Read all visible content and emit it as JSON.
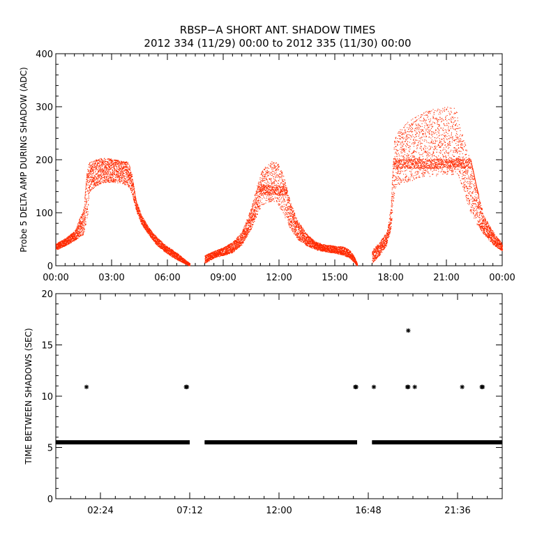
{
  "figure": {
    "title_line1": "RBSP−A SHORT ANT. SHADOW TIMES",
    "title_line2": "2012 334 (11/29) 00:00 to 2012 335 (11/30) 00:00"
  },
  "colors": {
    "top_points": "#ff2a00",
    "bottom_points": "#000000",
    "axes": "#000000",
    "background": "#ffffff"
  },
  "chart_data": [
    {
      "type": "scatter",
      "title": "",
      "xlabel": "",
      "ylabel": "Probe 5 DELTA AMP DURING SHADOW (ADC)",
      "x_unit": "hours",
      "xlim": [
        0,
        24
      ],
      "ylim": [
        0,
        400
      ],
      "x_ticks": [
        0,
        3,
        6,
        9,
        12,
        15,
        18,
        21,
        24
      ],
      "x_tick_labels": [
        "00:00",
        "03:00",
        "06:00",
        "09:00",
        "12:00",
        "15:00",
        "18:00",
        "21:00",
        "00:00"
      ],
      "y_ticks": [
        0,
        100,
        200,
        300,
        400
      ],
      "y_tick_labels": [
        "0",
        "100",
        "200",
        "300",
        "400"
      ],
      "grid": false,
      "marker": "dot",
      "color": "#ff2a00",
      "series": [
        {
          "segments": [
            {
              "x": [
                0.0,
                0.5,
                1.0,
                1.5,
                1.7,
                1.8,
                2.1,
                2.4,
                2.7,
                3.0,
                3.3,
                3.6,
                3.9,
                4.1,
                4.3,
                4.6,
                5.0,
                5.4,
                5.8,
                6.2,
                6.6,
                7.0,
                7.2
              ],
              "y_low": [
                30,
                38,
                48,
                60,
                95,
                140,
                150,
                155,
                158,
                158,
                157,
                155,
                150,
                135,
                105,
                78,
                58,
                40,
                28,
                18,
                10,
                3,
                0
              ],
              "y_high": [
                42,
                52,
                66,
                110,
                190,
                195,
                200,
                204,
                203,
                202,
                200,
                198,
                196,
                170,
                125,
                95,
                72,
                55,
                42,
                32,
                22,
                10,
                5
              ],
              "band_center": 175
            },
            {
              "x": [
                8.0,
                8.5,
                9.0,
                9.5,
                10.0,
                10.5,
                10.8,
                11.0,
                11.3,
                11.6,
                11.9,
                12.2,
                12.6,
                13.0,
                13.5,
                14.0,
                14.5,
                15.0,
                15.5,
                15.8,
                16.0,
                16.2
              ],
              "y_low": [
                5,
                15,
                20,
                25,
                40,
                70,
                95,
                110,
                120,
                122,
                118,
                100,
                70,
                50,
                38,
                30,
                27,
                24,
                20,
                14,
                8,
                0
              ],
              "y_high": [
                20,
                28,
                35,
                45,
                65,
                110,
                150,
                175,
                190,
                197,
                195,
                175,
                120,
                85,
                60,
                45,
                40,
                38,
                36,
                30,
                20,
                5
              ],
              "band_center": 143
            },
            {
              "x": [
                17.0,
                17.4,
                17.8,
                18.0,
                18.2,
                18.5,
                19.0,
                19.5,
                20.0,
                20.5,
                21.0,
                21.5,
                21.7,
                22.0,
                22.3,
                22.6,
                23.0,
                23.5,
                24.0
              ],
              "y_low": [
                5,
                20,
                40,
                70,
                140,
                155,
                160,
                165,
                168,
                170,
                172,
                172,
                165,
                130,
                100,
                80,
                60,
                40,
                28
              ],
              "y_high": [
                30,
                45,
                65,
                110,
                240,
                260,
                275,
                285,
                293,
                298,
                300,
                298,
                265,
                230,
                200,
                150,
                95,
                65,
                42
              ],
              "band_center": 193
            }
          ]
        }
      ]
    },
    {
      "type": "scatter",
      "title": "",
      "xlabel": "",
      "ylabel": "TIME BETWEEN SHADOWS (SEC)",
      "x_unit": "hours",
      "xlim": [
        0,
        24
      ],
      "ylim": [
        0,
        20
      ],
      "x_ticks": [
        2.4,
        7.2,
        12.0,
        16.8,
        21.6
      ],
      "x_tick_labels": [
        "02:24",
        "07:12",
        "12:00",
        "16:48",
        "21:36"
      ],
      "y_ticks": [
        0,
        5,
        10,
        15,
        20
      ],
      "y_tick_labels": [
        "0",
        "5",
        "10",
        "15",
        "20"
      ],
      "grid": false,
      "marker": "asterisk",
      "color": "#000000",
      "baseline": {
        "y": 5.5,
        "x_ranges": [
          [
            0.0,
            7.2
          ],
          [
            8.0,
            16.2
          ],
          [
            17.0,
            24.0
          ]
        ]
      },
      "outliers": {
        "x": [
          1.65,
          7.0,
          7.05,
          16.1,
          16.15,
          17.1,
          18.9,
          18.95,
          19.3,
          21.85,
          22.9,
          22.95
        ],
        "y": [
          10.9,
          10.9,
          10.9,
          10.9,
          10.9,
          10.9,
          10.9,
          10.9,
          10.9,
          10.9,
          10.9,
          10.9
        ]
      },
      "extra_points": {
        "x": [
          18.95
        ],
        "y": [
          16.4
        ]
      }
    }
  ]
}
